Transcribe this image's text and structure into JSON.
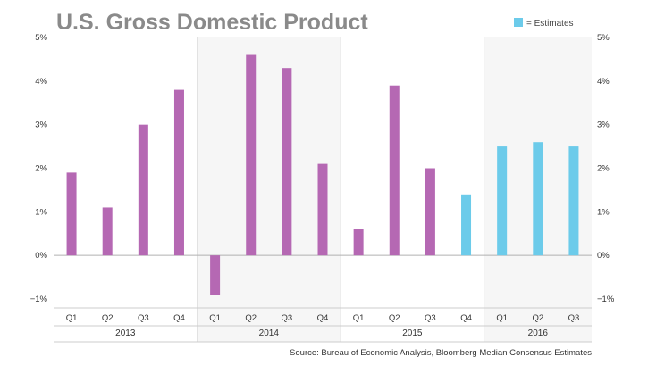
{
  "chart_data": {
    "type": "bar",
    "title": "U.S. Gross Domestic Product",
    "legend": {
      "label": "= Estimates",
      "color": "#6ccbea",
      "position": "top-right"
    },
    "source": "Source: Bureau of Economic Analysis, Bloomberg Median Consensus Estimates",
    "categories": [
      "Q1",
      "Q2",
      "Q3",
      "Q4",
      "Q1",
      "Q2",
      "Q3",
      "Q4",
      "Q1",
      "Q2",
      "Q3",
      "Q4",
      "Q1",
      "Q2",
      "Q3"
    ],
    "groups": [
      {
        "label": "2013",
        "count": 4
      },
      {
        "label": "2014",
        "count": 4
      },
      {
        "label": "2015",
        "count": 4
      },
      {
        "label": "2016",
        "count": 3
      }
    ],
    "values": [
      1.9,
      1.1,
      3.0,
      3.8,
      -0.9,
      4.6,
      4.3,
      2.1,
      0.6,
      3.9,
      2.0,
      1.4,
      2.5,
      2.6,
      2.5
    ],
    "estimate": [
      false,
      false,
      false,
      false,
      false,
      false,
      false,
      false,
      false,
      false,
      false,
      true,
      true,
      true,
      true
    ],
    "colors": {
      "actual": "#b568b3",
      "estimate": "#6ccbea"
    },
    "ylim": [
      -1,
      5
    ],
    "yticks": [
      -1,
      0,
      1,
      2,
      3,
      4,
      5
    ],
    "ytick_labels": [
      "−1%",
      "0%",
      "1%",
      "2%",
      "3%",
      "4%",
      "5%"
    ],
    "grid": false
  }
}
